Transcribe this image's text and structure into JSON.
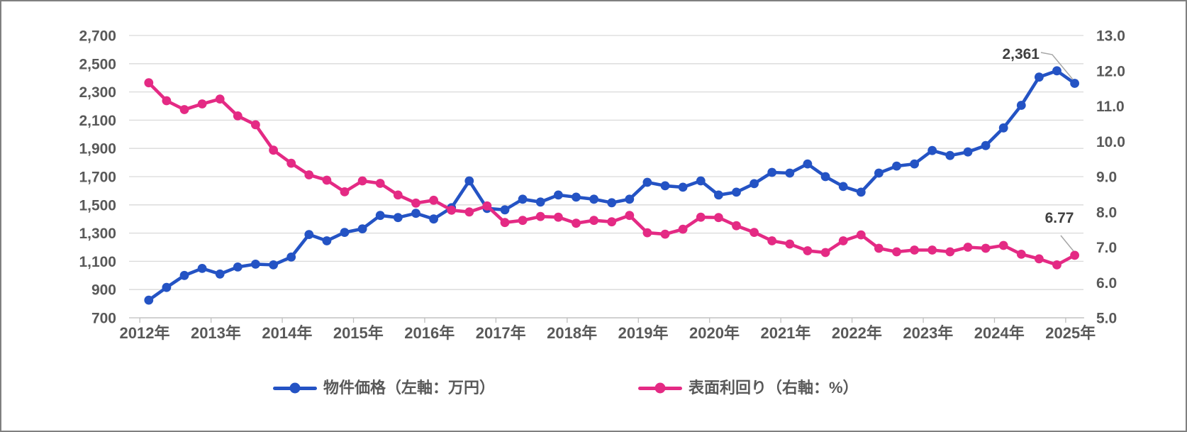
{
  "chart_data": {
    "type": "line",
    "title": "",
    "x": {
      "frequency": "quarterly",
      "start": "2012-Q1",
      "end": "2025-Q1",
      "points_per_series": 53,
      "year_tick_labels": [
        "2012年",
        "2013年",
        "2014年",
        "2015年",
        "2016年",
        "2017年",
        "2018年",
        "2019年",
        "2020年",
        "2021年",
        "2022年",
        "2023年",
        "2024年",
        "2025年"
      ]
    },
    "left_axis": {
      "unit": "万円",
      "min": 700,
      "max": 2700,
      "step": 200,
      "tick_labels": [
        "2,700",
        "2,500",
        "2,300",
        "2,100",
        "1,900",
        "1,700",
        "1,500",
        "1,300",
        "1,100",
        "900",
        "700"
      ]
    },
    "right_axis": {
      "unit": "%",
      "min": 5.0,
      "max": 13.0,
      "step": 1.0,
      "tick_labels": [
        "13.0",
        "12.0",
        "11.0",
        "10.0",
        "9.0",
        "8.0",
        "7.0",
        "6.0",
        "5.0"
      ]
    },
    "grid": true,
    "legend_position": "bottom",
    "series": [
      {
        "name": "物件価格（左軸：万円）",
        "axis": "left",
        "color": "#2453c4",
        "marker": "circle",
        "end_label": "2,361",
        "values": [
          825,
          915,
          1000,
          1050,
          1010,
          1060,
          1080,
          1075,
          1130,
          1290,
          1245,
          1305,
          1330,
          1425,
          1410,
          1440,
          1400,
          1480,
          1670,
          1475,
          1465,
          1540,
          1520,
          1570,
          1555,
          1540,
          1515,
          1540,
          1660,
          1635,
          1625,
          1670,
          1570,
          1590,
          1650,
          1730,
          1725,
          1790,
          1700,
          1630,
          1590,
          1725,
          1775,
          1790,
          1885,
          1850,
          1875,
          1920,
          2045,
          2205,
          2405,
          2450,
          2361
        ]
      },
      {
        "name": "表面利回り（右軸：%）",
        "axis": "right",
        "color": "#e42a84",
        "marker": "circle",
        "end_label": "6.77",
        "values": [
          11.66,
          11.15,
          10.9,
          11.06,
          11.2,
          10.72,
          10.47,
          9.75,
          9.38,
          9.05,
          8.9,
          8.57,
          8.88,
          8.81,
          8.48,
          8.25,
          8.33,
          8.05,
          8.0,
          8.17,
          7.7,
          7.76,
          7.87,
          7.85,
          7.68,
          7.76,
          7.72,
          7.9,
          7.41,
          7.37,
          7.51,
          7.85,
          7.84,
          7.61,
          7.42,
          7.18,
          7.09,
          6.9,
          6.85,
          7.18,
          7.35,
          6.97,
          6.87,
          6.92,
          6.92,
          6.87,
          7.0,
          6.97,
          7.05,
          6.8,
          6.67,
          6.5,
          6.77
        ]
      }
    ],
    "colors": {
      "grid": "#d9d9d9",
      "axis_line": "#bfbfbf",
      "tick_text": "#595959",
      "data_label_text": "#404040",
      "leader_line": "#a6a6a6",
      "background": "#ffffff",
      "border": "#808080"
    }
  }
}
